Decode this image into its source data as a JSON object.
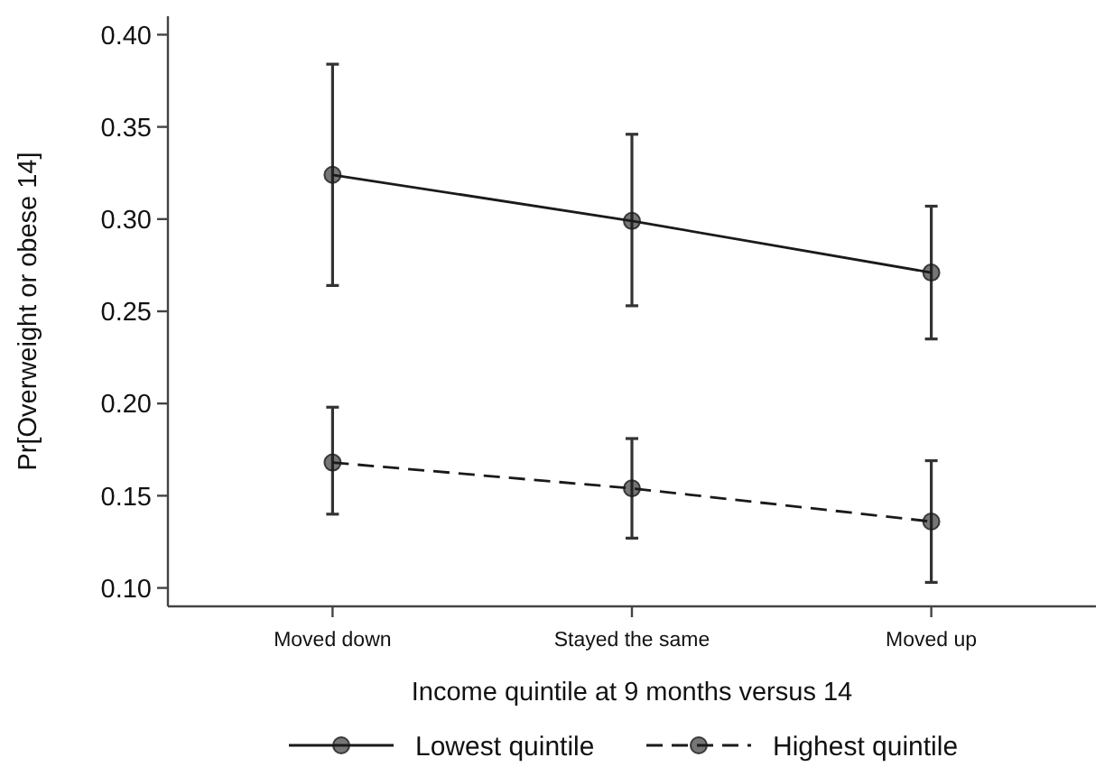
{
  "chart_data": {
    "type": "line",
    "categories": [
      "Moved down",
      "Stayed the same",
      "Moved up"
    ],
    "series": [
      {
        "name": "Lowest quintile",
        "color": "#1a1a1a",
        "line_style": "solid",
        "values": [
          0.324,
          0.299,
          0.271
        ],
        "errors": [
          [
            0.264,
            0.384
          ],
          [
            0.253,
            0.346
          ],
          [
            0.235,
            0.307
          ]
        ]
      },
      {
        "name": "Highest quintile",
        "color": "#1a1a1a",
        "line_style": "dashed",
        "values": [
          0.168,
          0.154,
          0.136
        ],
        "errors": [
          [
            0.14,
            0.198
          ],
          [
            0.127,
            0.181
          ],
          [
            0.103,
            0.169
          ]
        ]
      }
    ],
    "xlabel": "Income quintile at 9 months versus 14",
    "ylabel": "Pr[Overweight or obese 14]",
    "ylim": [
      0.09,
      0.41
    ],
    "yticks": [
      {
        "value": 0.1,
        "label": "0.10"
      },
      {
        "value": 0.15,
        "label": "0.15"
      },
      {
        "value": 0.2,
        "label": "0.20"
      },
      {
        "value": 0.25,
        "label": "0.25"
      },
      {
        "value": 0.3,
        "label": "0.30"
      },
      {
        "value": 0.35,
        "label": "0.35"
      },
      {
        "value": 0.4,
        "label": "0.40"
      }
    ],
    "marker": "circle",
    "legend": "bottom",
    "grid": false
  }
}
